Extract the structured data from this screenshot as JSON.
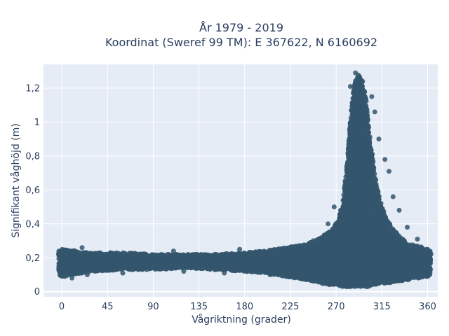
{
  "chart_data": {
    "type": "scatter",
    "title_line1": "År 1979 - 2019",
    "title_line2": "Koordinat (Sweref 99 TM): E 367622, N 6160692",
    "xlabel": "Vågriktning (grader)",
    "ylabel": "Signifikant våghöjd (m)",
    "xlim": [
      -18,
      370
    ],
    "ylim": [
      -0.03,
      1.34
    ],
    "x_ticks": [
      0,
      45,
      90,
      135,
      180,
      225,
      270,
      315,
      360
    ],
    "x_tick_labels": [
      "0",
      "45",
      "90",
      "135",
      "180",
      "225",
      "270",
      "315",
      "360"
    ],
    "y_ticks": [
      0,
      0.2,
      0.4,
      0.6,
      0.8,
      1.0,
      1.2
    ],
    "y_tick_labels": [
      "0",
      "0,2",
      "0,4",
      "0,6",
      "0,8",
      "1",
      "1,2"
    ],
    "grid": true,
    "legend": "none",
    "colors": {
      "marker": "#34566d",
      "plot_bg": "#e5ecf6",
      "grid": "#ffffff",
      "text": "#2a3f5f"
    },
    "series": [
      {
        "envelope": {
          "x": [
            -3,
            0,
            30,
            60,
            90,
            120,
            150,
            180,
            200,
            220,
            240,
            255,
            265,
            272,
            276,
            280,
            283,
            286,
            288,
            290,
            292,
            294,
            296,
            298,
            300,
            303,
            306,
            310,
            315,
            320,
            330,
            340,
            350,
            357,
            360,
            363
          ],
          "y_min": [
            0.1,
            0.09,
            0.12,
            0.13,
            0.13,
            0.14,
            0.13,
            0.12,
            0.11,
            0.09,
            0.07,
            0.05,
            0.04,
            0.04,
            0.03,
            0.03,
            0.03,
            0.03,
            0.03,
            0.03,
            0.03,
            0.03,
            0.03,
            0.03,
            0.03,
            0.03,
            0.04,
            0.04,
            0.05,
            0.05,
            0.06,
            0.07,
            0.08,
            0.09,
            0.09,
            0.1
          ],
          "y_max": [
            0.24,
            0.25,
            0.23,
            0.23,
            0.22,
            0.22,
            0.22,
            0.23,
            0.24,
            0.26,
            0.28,
            0.32,
            0.36,
            0.42,
            0.52,
            0.7,
            0.95,
            1.15,
            1.22,
            1.26,
            1.28,
            1.26,
            1.22,
            1.18,
            1.1,
            0.92,
            0.78,
            0.62,
            0.5,
            0.42,
            0.34,
            0.29,
            0.27,
            0.26,
            0.25,
            0.24
          ]
        },
        "outliers": [
          {
            "x": 284,
            "y": 1.21
          },
          {
            "x": 289,
            "y": 1.29
          },
          {
            "x": 296,
            "y": 1.24
          },
          {
            "x": 305,
            "y": 1.15
          },
          {
            "x": 308,
            "y": 1.06
          },
          {
            "x": 312,
            "y": 0.9
          },
          {
            "x": 318,
            "y": 0.78
          },
          {
            "x": 322,
            "y": 0.71
          },
          {
            "x": 326,
            "y": 0.56
          },
          {
            "x": 268,
            "y": 0.5
          },
          {
            "x": 262,
            "y": 0.4
          },
          {
            "x": 332,
            "y": 0.48
          },
          {
            "x": 340,
            "y": 0.38
          },
          {
            "x": 350,
            "y": 0.31
          },
          {
            "x": 245,
            "y": 0.29
          },
          {
            "x": 3,
            "y": 0.09
          },
          {
            "x": 10,
            "y": 0.08
          },
          {
            "x": 25,
            "y": 0.1
          },
          {
            "x": 60,
            "y": 0.11
          },
          {
            "x": 120,
            "y": 0.12
          },
          {
            "x": 160,
            "y": 0.11
          },
          {
            "x": 205,
            "y": 0.1
          },
          {
            "x": 226,
            "y": 0.09
          },
          {
            "x": 20,
            "y": 0.26
          },
          {
            "x": 110,
            "y": 0.24
          },
          {
            "x": 175,
            "y": 0.25
          },
          {
            "x": 352,
            "y": 0.09
          }
        ]
      }
    ]
  }
}
